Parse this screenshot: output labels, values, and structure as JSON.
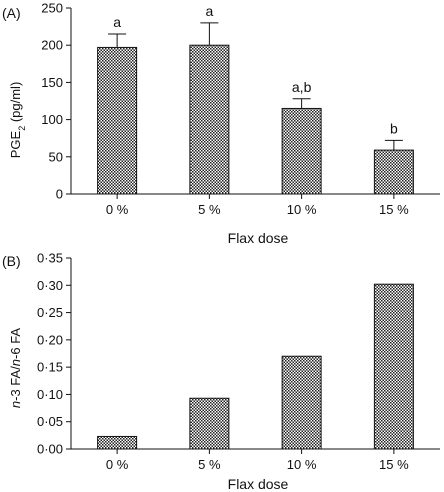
{
  "chart_data": [
    {
      "type": "bar",
      "panel_label": "(A)",
      "categories": [
        "0 %",
        "5 %",
        "10 %",
        "15 %"
      ],
      "values": [
        197,
        200,
        115,
        59
      ],
      "errors": [
        18,
        30,
        13,
        13
      ],
      "significance": [
        "a",
        "a",
        "a,b",
        "b"
      ],
      "xlabel": "Flax dose",
      "ylabel": {
        "pre": "PGE",
        "sub": "2",
        "post": " (pg/ml)"
      },
      "ylim": [
        0,
        250
      ],
      "yticks": [
        0,
        50,
        100,
        150,
        200,
        250
      ],
      "ytick_labels": [
        "0",
        "50",
        "100",
        "150",
        "200",
        "250"
      ],
      "grid": false
    },
    {
      "type": "bar",
      "panel_label": "(B)",
      "categories": [
        "0 %",
        "5 %",
        "10 %",
        "15 %"
      ],
      "values": [
        0.023,
        0.093,
        0.17,
        0.302
      ],
      "xlabel": "Flax dose",
      "ylabel": {
        "n1": "n",
        "mid1": "-3 FA/",
        "n2": "n",
        "mid2": "-6 FA"
      },
      "ylim": [
        0,
        0.35
      ],
      "yticks": [
        0,
        0.05,
        0.1,
        0.15,
        0.2,
        0.25,
        0.3,
        0.35
      ],
      "ytick_labels": [
        "0·00",
        "0·05",
        "0·10",
        "0·15",
        "0·20",
        "0·25",
        "0·30",
        "0·35"
      ],
      "grid": false
    }
  ]
}
